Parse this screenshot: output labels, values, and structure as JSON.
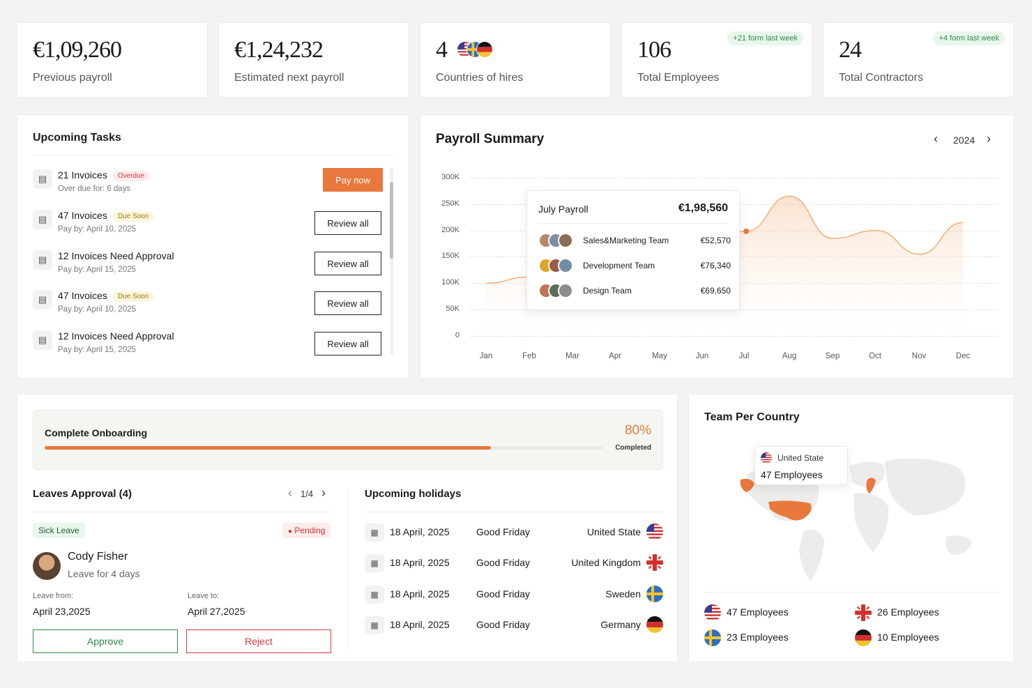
{
  "stats": [
    {
      "value": "€1,09,260",
      "label": "Previous payroll"
    },
    {
      "value": "€1,24,232",
      "label": "Estimated next payroll"
    },
    {
      "value": "4",
      "label": "Countries of hires"
    },
    {
      "value": "106",
      "label": "Total Employees",
      "badge": "+21 form last week"
    },
    {
      "value": "24",
      "label": "Total Contractors",
      "badge": "+4 form last week"
    }
  ],
  "tasks": {
    "title": "Upcoming Tasks",
    "items": [
      {
        "title": "21 Invoices",
        "pill": "Overdue",
        "sub": "Over due for: 6 days",
        "action": "Pay now"
      },
      {
        "title": "47 Invoices",
        "pill": "Due Soon",
        "sub": "Pay by: April 10, 2025",
        "action": "Review all"
      },
      {
        "title": "12 Invoices Need Approval",
        "pill": "",
        "sub": "Pay by: April 15, 2025",
        "action": "Review all"
      },
      {
        "title": "47 Invoices",
        "pill": "Due Soon",
        "sub": "Pay by: April 10, 2025",
        "action": "Review all"
      },
      {
        "title": "12 Invoices Need Approval",
        "pill": "",
        "sub": "Pay by: April 15, 2025",
        "action": "Review all"
      }
    ]
  },
  "payroll": {
    "title": "Payroll Summary",
    "year": "2024",
    "tooltip": {
      "title": "July Payroll",
      "total": "€1,98,560",
      "rows": [
        {
          "team": "Sales&Marketing Team",
          "amount": "€52,570"
        },
        {
          "team": "Development Team",
          "amount": "€76,340"
        },
        {
          "team": "Design Team",
          "amount": "€69,650"
        }
      ]
    }
  },
  "chart_data": {
    "type": "line",
    "x": [
      "Jan",
      "Feb",
      "Mar",
      "Apr",
      "May",
      "Jun",
      "Jul",
      "Aug",
      "Sep",
      "Oct",
      "Nov",
      "Dec"
    ],
    "y_ticks": [
      "300K",
      "250K",
      "200K",
      "150K",
      "100K",
      "50K",
      "0"
    ],
    "ylim": [
      0,
      300000
    ],
    "series": [
      {
        "values": [
          100000,
          112000,
          72000,
          80000,
          150000,
          185000,
          198560,
          265000,
          185000,
          200000,
          155000,
          215000
        ]
      }
    ],
    "color": "#f2b37e",
    "highlight": "Jul"
  },
  "onboarding": {
    "title": "Complete Onboarding",
    "percent": "80%",
    "progress": 0.8,
    "status": "Completed"
  },
  "leaves": {
    "title": "Leaves Approval (4)",
    "pager": "1/4",
    "type": "Sick Leave",
    "status": "Pending",
    "name": "Cody Fisher",
    "duration": "Leave for 4 days",
    "from_label": "Leave from:",
    "from": "April 23,2025",
    "to_label": "Leave to:",
    "to": "April 27,2025",
    "approve": "Approve",
    "reject": "Reject"
  },
  "holidays": {
    "title": "Upcoming holidays",
    "rows": [
      {
        "date": "18 April, 2025",
        "name": "Good Friday",
        "country": "United State",
        "flag": "us"
      },
      {
        "date": "18 April, 2025",
        "name": "Good Friday",
        "country": "United Kingdom",
        "flag": "uk"
      },
      {
        "date": "18 April, 2025",
        "name": "Good Friday",
        "country": "Sweden",
        "flag": "se"
      },
      {
        "date": "18 April, 2025",
        "name": "Good Friday",
        "country": "Germany",
        "flag": "de"
      }
    ]
  },
  "team_country": {
    "title": "Team Per Country",
    "tooltip_country": "United State",
    "tooltip_count": "47 Employees",
    "counts": [
      {
        "label": "47 Employees",
        "flag": "us"
      },
      {
        "label": "26 Employees",
        "flag": "uk"
      },
      {
        "label": "23 Employees",
        "flag": "se"
      },
      {
        "label": "10 Employees",
        "flag": "de"
      }
    ]
  },
  "colors": {
    "accent": "#e8783d",
    "green": "#2f8a4a",
    "red": "#d93a3a"
  }
}
